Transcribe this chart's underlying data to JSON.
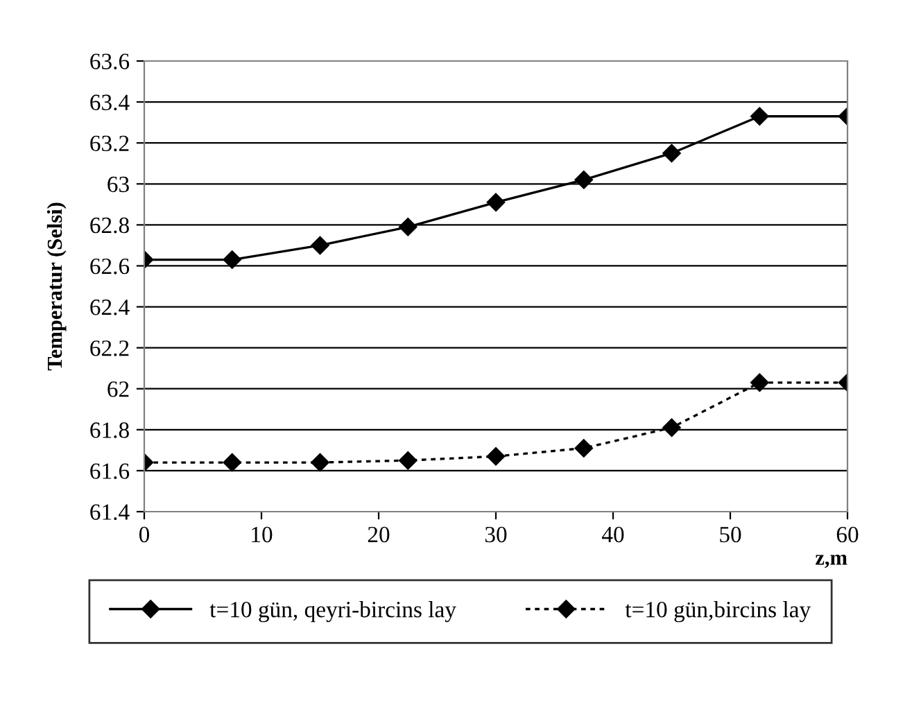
{
  "chart_data": {
    "type": "line",
    "xlabel": "z,m",
    "ylabel": "Temperatur (Selsi)",
    "x": [
      0,
      7.5,
      15,
      22.5,
      30,
      37.5,
      45,
      52.5,
      60
    ],
    "series": [
      {
        "name": "t=10 gün, qeyri-bircins lay",
        "color": "#000000",
        "line_style": "solid",
        "values": [
          62.63,
          62.63,
          62.7,
          62.79,
          62.91,
          63.02,
          63.15,
          63.33,
          63.33
        ]
      },
      {
        "name": "t=10 gün,bircins lay",
        "color": "#000000",
        "line_style": "dotted",
        "values": [
          61.64,
          61.64,
          61.64,
          61.65,
          61.67,
          61.71,
          61.81,
          62.03,
          62.03
        ]
      }
    ],
    "xlim": [
      0,
      60
    ],
    "xticks": [
      0,
      10,
      20,
      30,
      40,
      50,
      60
    ],
    "ylim": [
      61.4,
      63.6
    ],
    "yticks": [
      {
        "value": 61.4,
        "label": "61.4"
      },
      {
        "value": 61.6,
        "label": "61.6"
      },
      {
        "value": 61.8,
        "label": "61.8"
      },
      {
        "value": 62,
        "label": "62"
      },
      {
        "value": 62.2,
        "label": "62.2"
      },
      {
        "value": 62.4,
        "label": "62.4"
      },
      {
        "value": 62.6,
        "label": "62.6"
      },
      {
        "value": 62.8,
        "label": "62.8"
      },
      {
        "value": 63,
        "label": "63"
      },
      {
        "value": 63.2,
        "label": "63.2"
      },
      {
        "value": 63.4,
        "label": "63.4"
      },
      {
        "value": 63.6,
        "label": "63.6"
      }
    ],
    "grid": "y",
    "legend": "bottom",
    "marker": "diamond"
  }
}
